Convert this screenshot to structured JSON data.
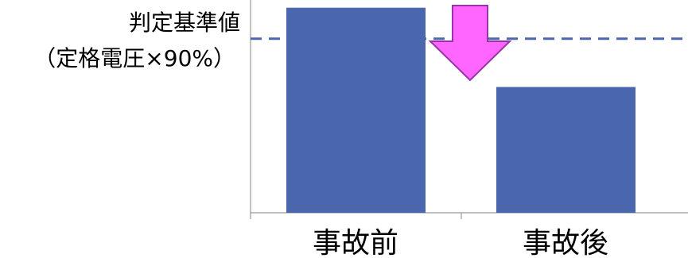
{
  "chart_data": {
    "type": "bar",
    "categories": [
      "事故前",
      "事故後"
    ],
    "values": [
      106,
      65
    ],
    "ylim": [
      0,
      110
    ],
    "threshold": {
      "value": 90,
      "label_line1": "判定基準値",
      "label_line2": "（定格電圧×90%）",
      "style": "dashed"
    },
    "grid": false,
    "legend": "none",
    "colors": {
      "bar": "#4a67ae",
      "threshold_line": "#4a67ae",
      "arrow_fill": "#ff66ff",
      "arrow_stroke": "#9933aa",
      "axis": "#999999"
    },
    "annotation": {
      "type": "arrow-down",
      "meaning": "decrease"
    }
  }
}
